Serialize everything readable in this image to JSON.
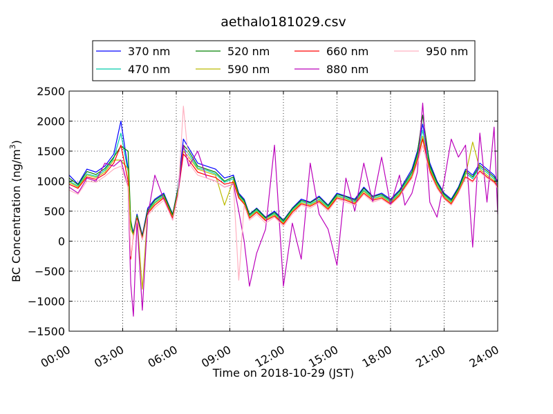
{
  "chart_data": {
    "type": "line",
    "title": "aethalo181029.csv",
    "xlabel": "Time on 2018-10-29 (JST)",
    "ylabel_main": "BC Concentration (ng/m",
    "ylabel_sup": "3",
    "ylabel_end": ")",
    "xlim": [
      0,
      24
    ],
    "ylim": [
      -1500,
      2500
    ],
    "grid": true,
    "legend_position": "top",
    "x_tick_values": [
      0,
      3,
      6,
      9,
      12,
      15,
      18,
      21,
      24
    ],
    "x_tick_labels": [
      "00:00",
      "03:00",
      "06:00",
      "09:00",
      "12:00",
      "15:00",
      "18:00",
      "21:00",
      "24:00"
    ],
    "y_ticks": [
      -1500,
      -1000,
      -500,
      0,
      500,
      1000,
      1500,
      2000,
      2500
    ],
    "y_tick_labels": [
      "−1500",
      "−1000",
      "−500",
      "0",
      "500",
      "1000",
      "1500",
      "2000",
      "2500"
    ],
    "x": [
      0,
      0.5,
      1,
      1.5,
      2,
      2.5,
      2.9,
      3.3,
      3.45,
      3.6,
      3.8,
      4.1,
      4.4,
      4.8,
      5.3,
      5.8,
      6.1,
      6.4,
      6.7,
      7.2,
      7.7,
      8.2,
      8.7,
      9.2,
      9.5,
      9.8,
      10.1,
      10.5,
      11,
      11.5,
      12,
      12.5,
      13,
      13.5,
      14,
      14.5,
      15,
      15.5,
      16,
      16.5,
      17,
      17.5,
      18,
      18.5,
      18.8,
      19.2,
      19.5,
      19.8,
      20.2,
      20.6,
      21,
      21.4,
      21.8,
      22.2,
      22.6,
      23,
      23.4,
      23.8,
      24
    ],
    "series": [
      {
        "name": "370 nm",
        "color": "#0000ff",
        "values": [
          1100,
          950,
          1200,
          1150,
          1250,
          1450,
          2000,
          1200,
          300,
          150,
          450,
          100,
          550,
          700,
          800,
          450,
          900,
          1700,
          1550,
          1300,
          1250,
          1200,
          1050,
          1100,
          800,
          700,
          450,
          550,
          400,
          500,
          350,
          550,
          700,
          650,
          750,
          600,
          800,
          750,
          700,
          900,
          750,
          800,
          700,
          850,
          1000,
          1200,
          1500,
          1950,
          1300,
          1000,
          800,
          700,
          900,
          1200,
          1100,
          1300,
          1200,
          1100,
          1000
        ]
      },
      {
        "name": "470 nm",
        "color": "#00ccaa",
        "values": [
          1000,
          920,
          1120,
          1080,
          1180,
          1380,
          1800,
          1150,
          280,
          120,
          420,
          60,
          500,
          650,
          760,
          420,
          850,
          1550,
          1450,
          1220,
          1180,
          1120,
          980,
          1040,
          760,
          660,
          420,
          520,
          380,
          460,
          320,
          520,
          660,
          620,
          700,
          570,
          760,
          720,
          660,
          850,
          720,
          760,
          660,
          800,
          940,
          1130,
          1420,
          1850,
          1230,
          950,
          760,
          660,
          860,
          1140,
          1040,
          1230,
          1140,
          1040,
          950
        ]
      },
      {
        "name": "520 nm",
        "color": "#008000",
        "values": [
          1050,
          940,
          1160,
          1110,
          1210,
          1400,
          1580,
          1500,
          350,
          100,
          430,
          80,
          520,
          680,
          780,
          440,
          880,
          1600,
          1500,
          1250,
          1200,
          1150,
          1000,
          1070,
          780,
          680,
          440,
          540,
          390,
          480,
          340,
          540,
          680,
          640,
          730,
          590,
          780,
          740,
          680,
          880,
          740,
          780,
          680,
          830,
          970,
          1160,
          1460,
          2100,
          1260,
          980,
          780,
          680,
          880,
          1170,
          1070,
          1260,
          1170,
          1070,
          980
        ]
      },
      {
        "name": "590 nm",
        "color": "#bbbb00",
        "values": [
          980,
          900,
          1100,
          1060,
          1150,
          1350,
          1350,
          1200,
          200,
          100,
          400,
          -800,
          480,
          630,
          740,
          400,
          830,
          1500,
          1400,
          1200,
          1150,
          1100,
          600,
          1020,
          740,
          640,
          400,
          500,
          360,
          440,
          300,
          500,
          640,
          600,
          680,
          550,
          740,
          700,
          640,
          830,
          700,
          740,
          640,
          780,
          920,
          1100,
          1380,
          1750,
          1200,
          930,
          740,
          640,
          840,
          1100,
          1650,
          1200,
          1100,
          1010,
          930
        ]
      },
      {
        "name": "660 nm",
        "color": "#ff0000",
        "values": [
          950,
          880,
          1070,
          1030,
          1120,
          1300,
          1600,
          1000,
          -300,
          80,
          380,
          40,
          460,
          600,
          720,
          380,
          800,
          1450,
          1350,
          1150,
          1100,
          1060,
          950,
          980,
          720,
          620,
          380,
          480,
          340,
          420,
          280,
          480,
          620,
          580,
          660,
          530,
          720,
          680,
          620,
          800,
          680,
          720,
          620,
          760,
          900,
          1070,
          1350,
          1700,
          1170,
          900,
          720,
          620,
          820,
          1070,
          1000,
          1170,
          1070,
          990,
          900
        ]
      },
      {
        "name": "880 nm",
        "color": "#bb00bb",
        "values": [
          900,
          800,
          1050,
          1000,
          1300,
          1250,
          1350,
          900,
          -700,
          -1250,
          350,
          -1150,
          420,
          1100,
          700,
          350,
          780,
          1600,
          1250,
          1500,
          1050,
          1000,
          900,
          950,
          500,
          0,
          -750,
          -200,
          200,
          1600,
          -750,
          300,
          -300,
          1300,
          450,
          200,
          -400,
          1050,
          500,
          1300,
          650,
          1400,
          600,
          1100,
          600,
          800,
          1150,
          2300,
          650,
          400,
          1000,
          1700,
          1400,
          1600,
          -100,
          1800,
          650,
          1900,
          450
        ]
      },
      {
        "name": "950 nm",
        "color": "#ffb0c0",
        "values": [
          850,
          780,
          1000,
          980,
          1080,
          1200,
          1250,
          900,
          -250,
          60,
          350,
          20,
          430,
          560,
          680,
          350,
          760,
          2250,
          1300,
          1100,
          1050,
          1000,
          900,
          940,
          -650,
          600,
          350,
          450,
          300,
          400,
          250,
          450,
          600,
          550,
          640,
          500,
          700,
          650,
          600,
          780,
          650,
          700,
          600,
          740,
          880,
          1050,
          1300,
          1600,
          1130,
          880,
          700,
          600,
          800,
          1050,
          980,
          1150,
          1050,
          970,
          880
        ]
      }
    ]
  }
}
